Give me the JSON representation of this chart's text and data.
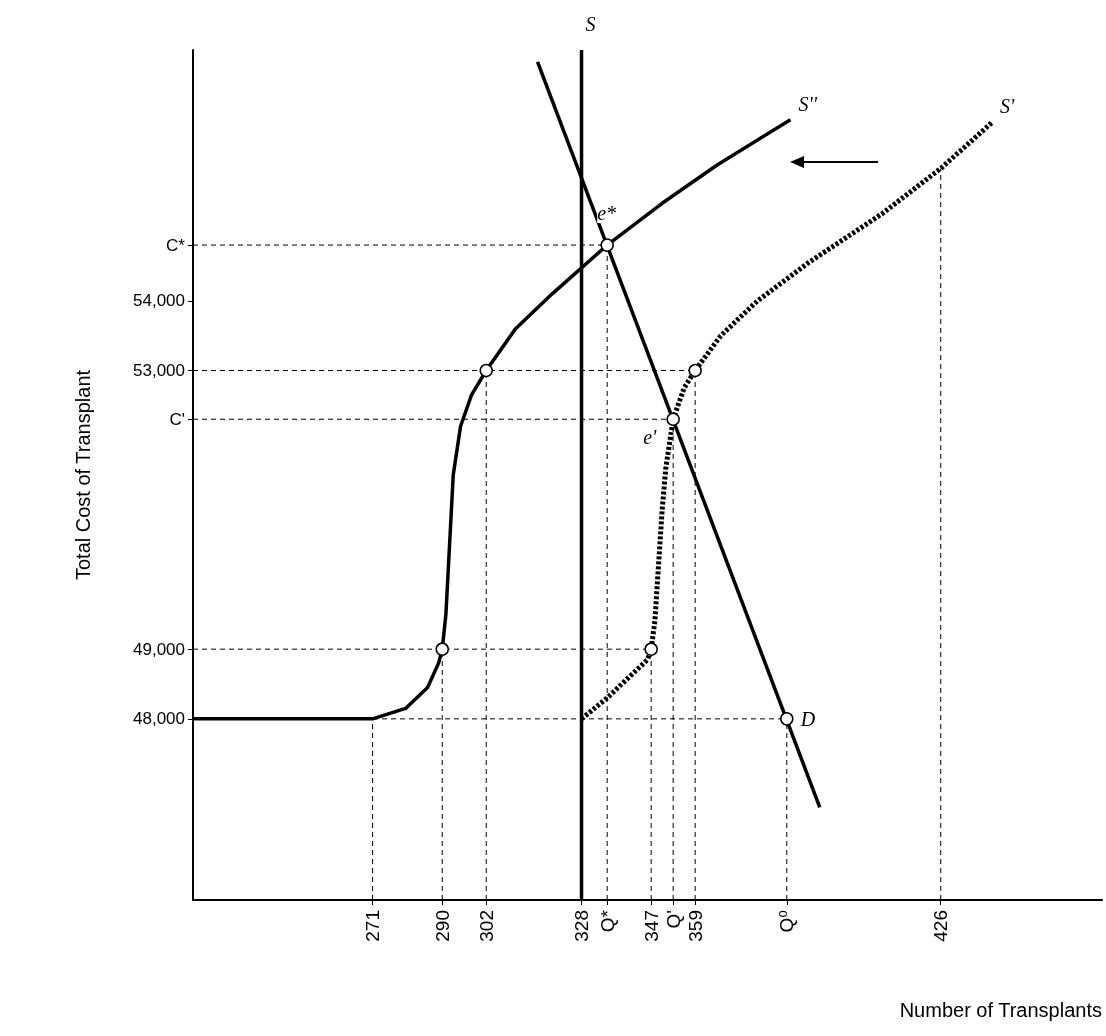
{
  "chart_data": {
    "type": "line",
    "xlabel": "Number of Transplants",
    "ylabel": "Total Cost of Transplant",
    "xlim": [
      222,
      470
    ],
    "ylim": [
      45400,
      57600
    ],
    "xticks": [
      271,
      290,
      302,
      328,
      {
        "value": 335,
        "label": "Q*"
      },
      347,
      {
        "value": 353,
        "label": "Q'"
      },
      359,
      {
        "value": 384,
        "label": "Q⁰"
      },
      426
    ],
    "yticks": [
      {
        "value": 48000,
        "label": "48,000"
      },
      {
        "value": 49000,
        "label": "49,000"
      },
      {
        "value": 52300,
        "label": "C'"
      },
      {
        "value": 53000,
        "label": "53,000"
      },
      {
        "value": 54000,
        "label": "54,000"
      },
      {
        "value": 54800,
        "label": "C*"
      }
    ],
    "grid": false,
    "series": [
      {
        "color": "#000000",
        "line_style": "dashed",
        "x": [
          271,
          271
        ],
        "values": [
          45400,
          48000
        ]
      },
      {
        "color": "#000000",
        "line_style": "dashed",
        "x": [
          290,
          290
        ],
        "values": [
          45400,
          49000
        ]
      },
      {
        "color": "#000000",
        "line_style": "dashed",
        "x": [
          302,
          302
        ],
        "values": [
          45400,
          53000
        ]
      },
      {
        "color": "#000000",
        "line_style": "dashed",
        "x": [
          335,
          335
        ],
        "values": [
          45400,
          54800
        ]
      },
      {
        "color": "#000000",
        "line_style": "dashed",
        "x": [
          347,
          347
        ],
        "values": [
          45400,
          49000
        ]
      },
      {
        "color": "#000000",
        "line_style": "dashed",
        "x": [
          353,
          353
        ],
        "values": [
          45400,
          52300
        ]
      },
      {
        "color": "#000000",
        "line_style": "dashed",
        "x": [
          359,
          359
        ],
        "values": [
          45400,
          53000
        ]
      },
      {
        "color": "#000000",
        "line_style": "dashed",
        "x": [
          384,
          384
        ],
        "values": [
          45400,
          48000
        ]
      },
      {
        "color": "#000000",
        "line_style": "dashed",
        "x": [
          426,
          426
        ],
        "values": [
          45400,
          55900
        ]
      },
      {
        "color": "#000000",
        "line_style": "dashed",
        "x": [
          222,
          384
        ],
        "values": [
          48000,
          48000
        ]
      },
      {
        "color": "#000000",
        "line_style": "dashed",
        "x": [
          222,
          347
        ],
        "values": [
          49000,
          49000
        ]
      },
      {
        "color": "#000000",
        "line_style": "dashed",
        "x": [
          222,
          359
        ],
        "values": [
          53000,
          53000
        ]
      },
      {
        "color": "#000000",
        "line_style": "dashed",
        "x": [
          222,
          353
        ],
        "values": [
          52300,
          52300
        ]
      },
      {
        "color": "#000000",
        "line_style": "dashed",
        "x": [
          222,
          335
        ],
        "values": [
          54800,
          54800
        ]
      },
      {
        "color": "#000000",
        "line_style": "solid",
        "x": [
          328,
          328
        ],
        "values": [
          45400,
          57600
        ]
      },
      {
        "color": "#000000",
        "line_style": "solid",
        "x": [
          316,
          393
        ],
        "values": [
          57430,
          46730
        ]
      },
      {
        "color": "#000000",
        "line_style": "solid",
        "x": [
          222,
          271,
          280,
          286,
          289,
          290,
          291,
          292,
          293,
          295,
          298,
          302,
          310,
          320,
          335,
          350,
          365,
          385
        ],
        "values": [
          48000,
          48000,
          48150,
          48450,
          48800,
          49000,
          49500,
          50500,
          51500,
          52200,
          52650,
          53000,
          53600,
          54100,
          54800,
          55400,
          55950,
          56600
        ]
      },
      {
        "color": "#000000",
        "line_style": "dotted",
        "x": [
          328,
          335,
          342,
          346,
          347,
          348,
          349,
          350,
          351,
          353,
          356,
          359,
          366,
          376,
          390,
          410,
          426,
          440
        ],
        "values": [
          48000,
          48300,
          48650,
          48850,
          49000,
          49400,
          50200,
          51000,
          51600,
          52300,
          52750,
          53000,
          53500,
          54000,
          54550,
          55250,
          55900,
          56560
        ]
      },
      {
        "type": "scatter",
        "color": "#ffffff",
        "marker": "circle",
        "x": [
          290,
          302,
          347,
          359,
          384,
          335,
          353
        ],
        "values": [
          49000,
          53000,
          49000,
          53000,
          48000,
          54800,
          52300
        ]
      }
    ],
    "annotations": [
      {
        "text": "S",
        "x": 328,
        "y": 57600
      },
      {
        "text": "S''",
        "x": 385,
        "y": 56600
      },
      {
        "text": "S'",
        "x": 440,
        "y": 56560
      },
      {
        "text": "e*",
        "x": 335,
        "y": 54800
      },
      {
        "text": "e'",
        "x": 353,
        "y": 52300
      },
      {
        "text": "D",
        "x": 384,
        "y": 48000
      }
    ]
  }
}
